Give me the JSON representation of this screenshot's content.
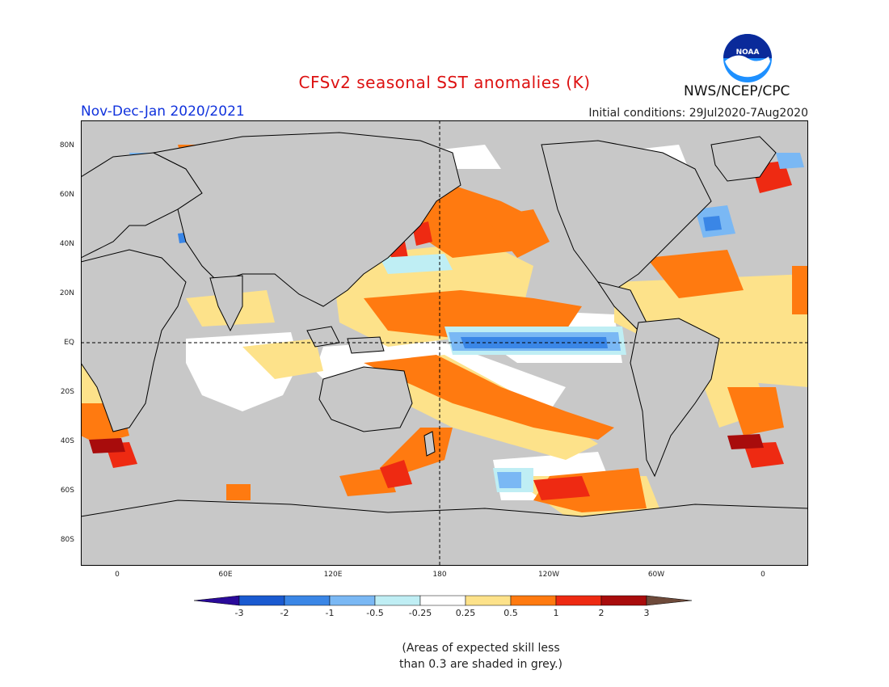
{
  "title": "CFSv2 seasonal SST anomalies (K)",
  "period": "Nov-Dec-Jan 2020/2021",
  "initial_conditions": "Initial conditions: 29Jul2020-7Aug2020",
  "agency": "NWS/NCEP/CPC",
  "logo_text": "NOAA",
  "lat_labels": [
    "80N",
    "60N",
    "40N",
    "20N",
    "EQ",
    "20S",
    "40S",
    "60S",
    "80S"
  ],
  "lon_labels": [
    "0",
    "60E",
    "120E",
    "180",
    "120W",
    "60W",
    "0"
  ],
  "colorbar": {
    "ticks": [
      "-3",
      "-2",
      "-1",
      "-0.5",
      "-0.25",
      "0.25",
      "0.5",
      "1",
      "2",
      "3"
    ],
    "colors": [
      "#2a0a9a",
      "#1a5ad0",
      "#3a86e6",
      "#7ab8f4",
      "#bfeef4",
      "#ffffff",
      "#fde28a",
      "#ff7a10",
      "#ee2a12",
      "#a80c0c",
      "#6e4a3a"
    ]
  },
  "colors": {
    "ocean_grey": "#c8c8c8",
    "land": "#c8c8c8",
    "coast": "#000000"
  },
  "skill_note_line1": "(Areas of expected skill less",
  "skill_note_line2": "than 0.3 are shaded in grey.)"
}
